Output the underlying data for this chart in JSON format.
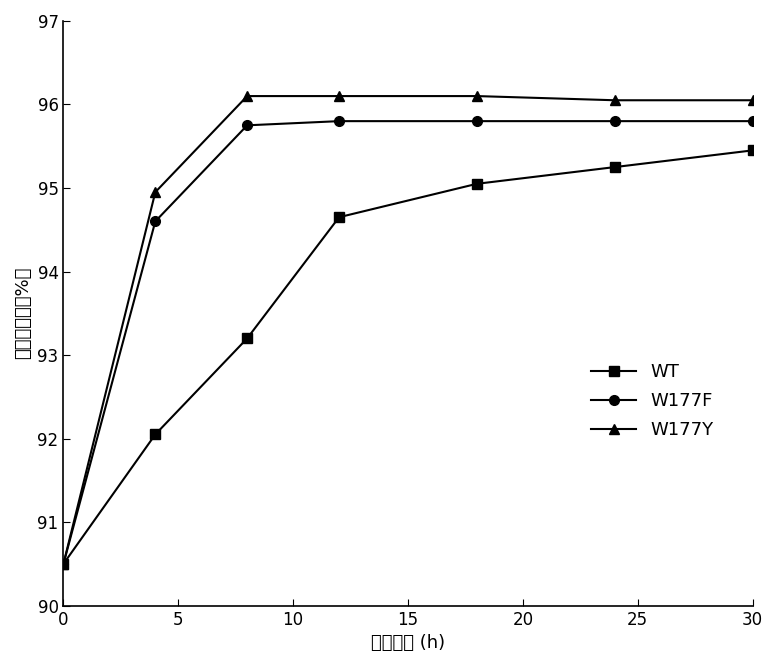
{
  "x": [
    0,
    4,
    8,
    12,
    18,
    24,
    30
  ],
  "WT": [
    90.5,
    92.05,
    93.2,
    94.65,
    95.05,
    95.25,
    95.45
  ],
  "W177F": [
    90.5,
    94.6,
    95.75,
    95.8,
    95.8,
    95.8,
    95.8
  ],
  "W177Y": [
    90.5,
    94.95,
    96.1,
    96.1,
    96.1,
    96.05,
    96.05
  ],
  "xlabel": "反应时间 (h)",
  "ylabel": "麦芽糖含量（%）",
  "xlim": [
    0,
    30
  ],
  "ylim": [
    90,
    97
  ],
  "yticks": [
    90,
    91,
    92,
    93,
    94,
    95,
    96,
    97
  ],
  "xticks": [
    0,
    5,
    10,
    15,
    20,
    25,
    30
  ],
  "legend_labels": [
    "WT",
    "W177F",
    "W177Y"
  ],
  "line_color": "#000000",
  "marker_WT": "s",
  "marker_W177F": "o",
  "marker_W177Y": "^",
  "markersize": 7,
  "linewidth": 1.5,
  "tick_fontsize": 12,
  "label_fontsize": 13
}
